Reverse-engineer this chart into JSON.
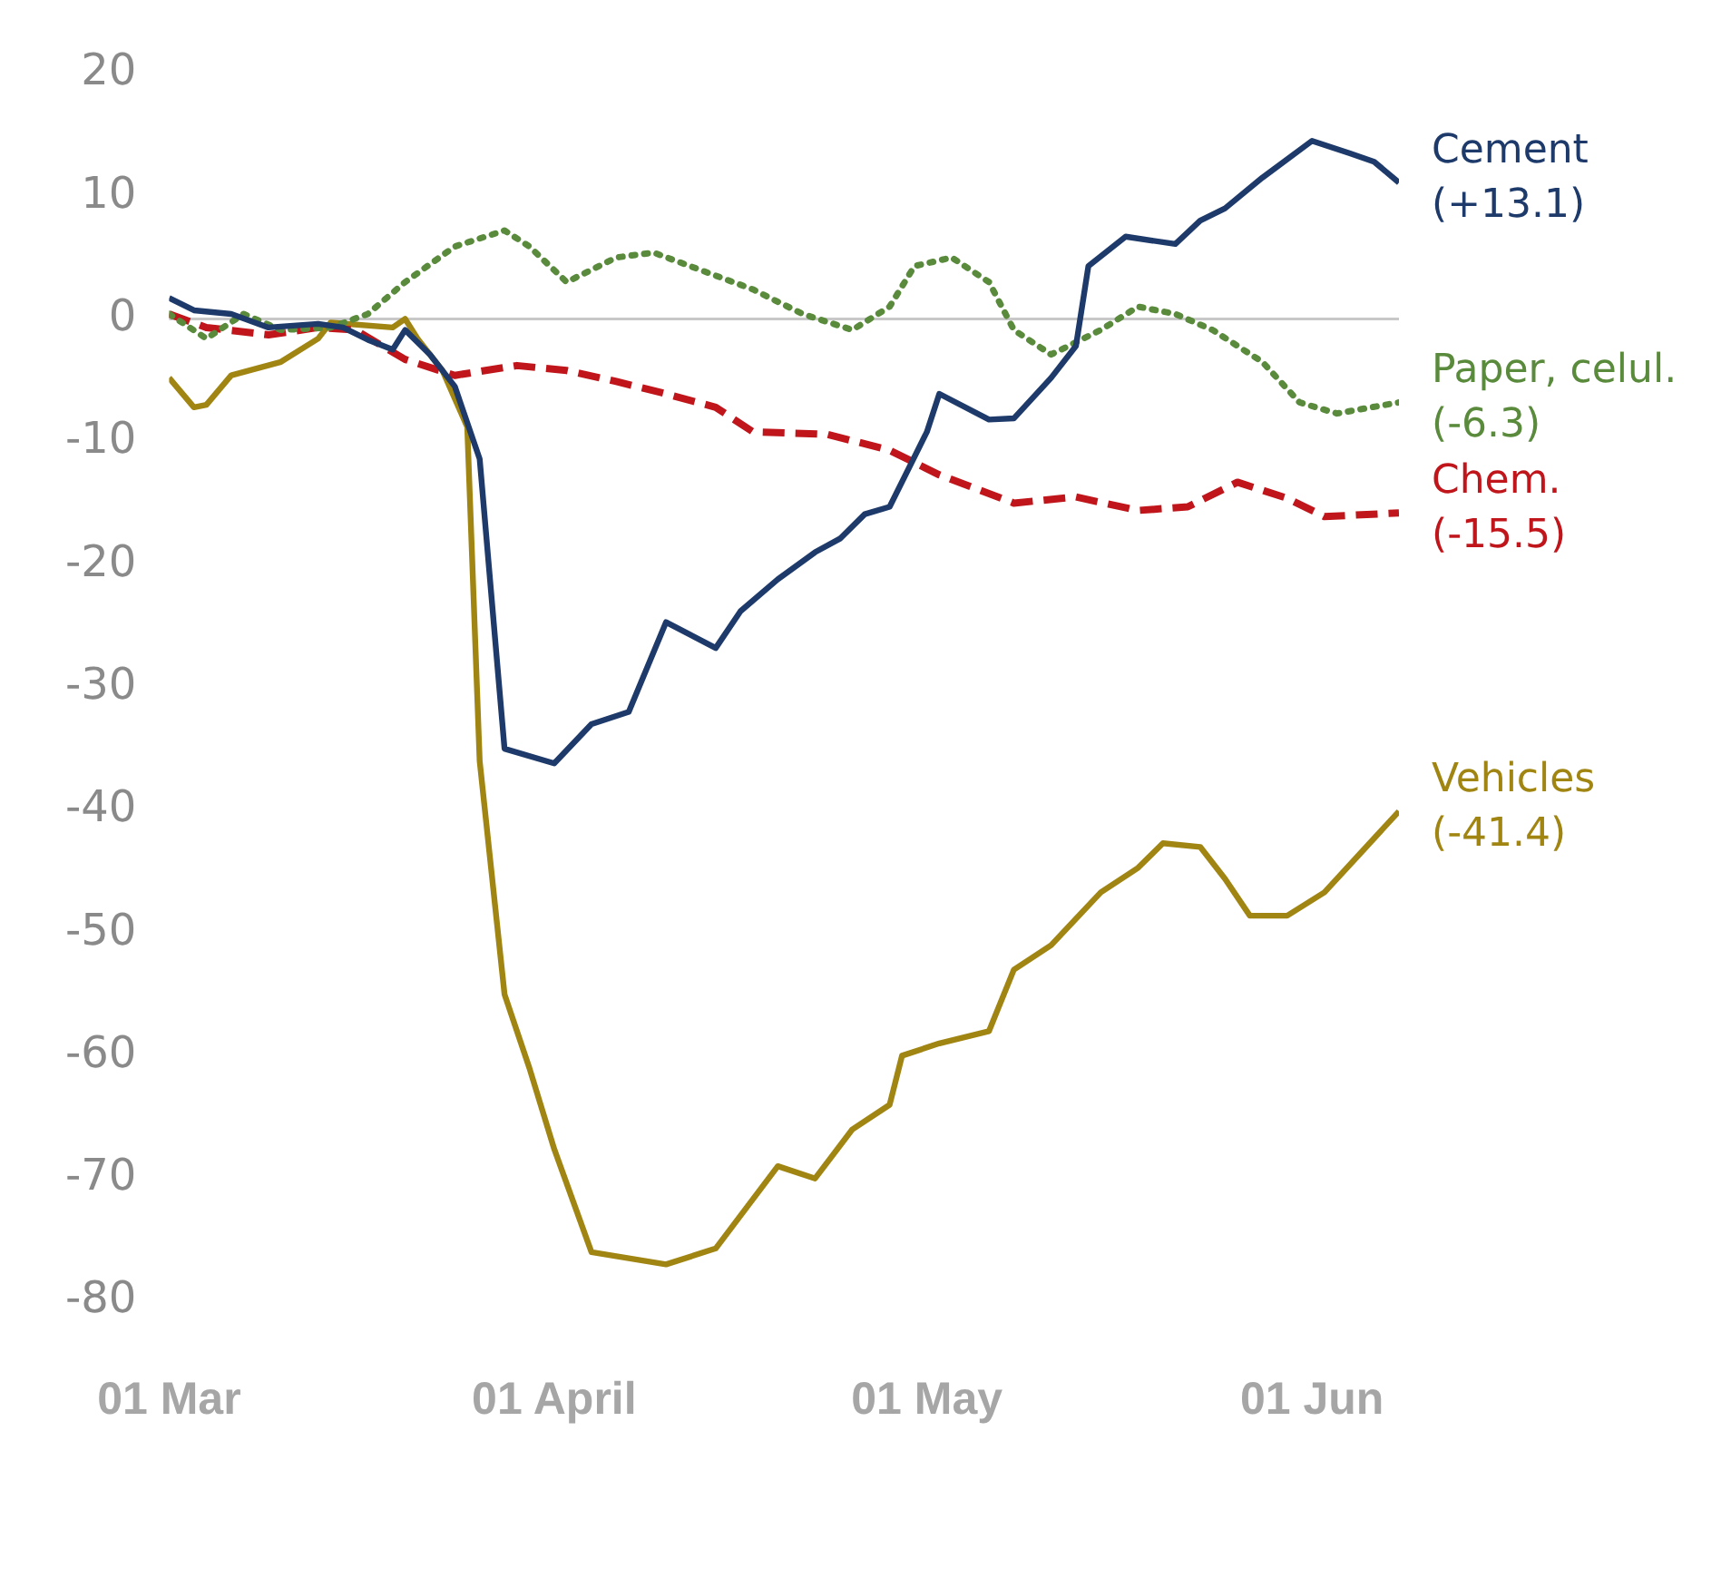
{
  "chart_data": {
    "type": "line",
    "marker": "none",
    "legend": false,
    "grid": false,
    "xlim": [
      "--03-01",
      "--06-08"
    ],
    "xticks": [
      {
        "value": "--03-01",
        "label": "01 Mar"
      },
      {
        "value": "--04-01",
        "label": "01 April"
      },
      {
        "value": "--05-01",
        "label": "01 May"
      },
      {
        "value": "--06-01",
        "label": "01 Jun"
      }
    ],
    "ylim": [
      -80,
      20
    ],
    "yticks": [
      -80,
      -70,
      -60,
      -50,
      -40,
      -30,
      -20,
      -10,
      0,
      10,
      20
    ],
    "ref_lines": [
      {
        "axis": "y",
        "value": 0,
        "color": "#c8c8c8"
      }
    ],
    "series": [
      {
        "name": "Cement",
        "color": "#1d3a6b",
        "line_style": "solid",
        "x": [
          "--03-01",
          "--03-03",
          "--03-06",
          "--03-09",
          "--03-13",
          "--03-15",
          "--03-17",
          "--03-19",
          "--03-20",
          "--03-22",
          "--03-24",
          "--03-26",
          "--03-28",
          "--04-01",
          "--04-04",
          "--04-07",
          "--04-10",
          "--04-14",
          "--04-16",
          "--04-19",
          "--04-22",
          "--04-24",
          "--04-26",
          "--04-28",
          "--05-01",
          "--05-02",
          "--05-06",
          "--05-08",
          "--05-11",
          "--05-13",
          "--05-14",
          "--05-17",
          "--05-21",
          "--05-23",
          "--05-25",
          "--05-28",
          "--06-01",
          "--06-04",
          "--06-06",
          "--06-08"
        ],
        "values": [
          1.7,
          0.7,
          0.4,
          -0.7,
          -0.4,
          -0.7,
          -1.7,
          -2.5,
          -0.9,
          -2.9,
          -5.5,
          -11.4,
          -35,
          -36.2,
          -33,
          -32,
          -24.7,
          -26.8,
          -23.8,
          -21.2,
          -19,
          -17.9,
          -15.9,
          -15.3,
          -9.2,
          -6.1,
          -8.2,
          -8.1,
          -4.8,
          -2.2,
          4.3,
          6.7,
          6.1,
          8,
          9,
          11.5,
          14.5,
          13.5,
          12.8,
          11.1
        ]
      },
      {
        "name": "Paper, celul.",
        "color": "#5a8a3c",
        "line_style": "dotted",
        "x": [
          "--03-01",
          "--03-04",
          "--03-07",
          "--03-10",
          "--03-14",
          "--03-17",
          "--03-20",
          "--03-24",
          "--03-28",
          "--03-30",
          "--04-02",
          "--04-06",
          "--04-09",
          "--04-13",
          "--04-17",
          "--04-21",
          "--04-25",
          "--04-28",
          "--04-30",
          "--05-03",
          "--05-06",
          "--05-08",
          "--05-11",
          "--05-15",
          "--05-18",
          "--05-21",
          "--05-24",
          "--05-28",
          "--05-31",
          "--06-03",
          "--06-08"
        ],
        "values": [
          0.4,
          -1.6,
          0.4,
          -0.9,
          -0.7,
          0.4,
          3,
          5.9,
          7.2,
          5.9,
          3,
          5,
          5.4,
          3.9,
          2.4,
          0.4,
          -0.9,
          1,
          4.3,
          5,
          3,
          -0.9,
          -2.9,
          -0.9,
          1,
          0.4,
          -0.9,
          -3.5,
          -6.8,
          -7.7,
          -6.8
        ]
      },
      {
        "name": "Chem.",
        "color": "#c0161b",
        "line_style": "dashed",
        "x": [
          "--03-01",
          "--03-04",
          "--03-09",
          "--03-13",
          "--03-16",
          "--03-20",
          "--03-24",
          "--03-29",
          "--04-02",
          "--04-06",
          "--04-10",
          "--04-14",
          "--04-17",
          "--04-23",
          "--04-28",
          "--05-02",
          "--05-08",
          "--05-13",
          "--05-18",
          "--05-22",
          "--05-26",
          "--05-30",
          "--06-02",
          "--06-08"
        ],
        "values": [
          0.4,
          -0.7,
          -1.3,
          -0.7,
          -0.9,
          -3.3,
          -4.6,
          -3.8,
          -4.2,
          -5.1,
          -6.1,
          -7.2,
          -9.2,
          -9.4,
          -10.7,
          -12.7,
          -15,
          -14.5,
          -15.6,
          -15.3,
          -13.3,
          -14.6,
          -16.1,
          -15.8
        ]
      },
      {
        "name": "Vehicles",
        "color": "#a08512",
        "line_style": "solid",
        "x": [
          "--03-01",
          "--03-03",
          "--03-04",
          "--03-06",
          "--03-10",
          "--03-13",
          "--03-14",
          "--03-19",
          "--03-20",
          "--03-21",
          "--03-23",
          "--03-25",
          "--03-26",
          "--03-28",
          "--03-30",
          "--04-01",
          "--04-04",
          "--04-10",
          "--04-14",
          "--04-19",
          "--04-22",
          "--04-25",
          "--04-28",
          "--04-29",
          "--05-02",
          "--05-06",
          "--05-08",
          "--05-11",
          "--05-15",
          "--05-18",
          "--05-20",
          "--05-23",
          "--05-25",
          "--05-27",
          "--05-30",
          "--06-02",
          "--06-05",
          "--06-08"
        ],
        "values": [
          -4.8,
          -7.2,
          -7,
          -4.6,
          -3.5,
          -1.6,
          -0.3,
          -0.7,
          0,
          -1.6,
          -4.2,
          -8.8,
          -36,
          -55,
          -61,
          -67.6,
          -76,
          -77,
          -75.7,
          -69,
          -70,
          -66,
          -64,
          -60,
          -59,
          -58,
          -53,
          -51,
          -46.7,
          -44.7,
          -42.7,
          -43,
          -45.6,
          -48.6,
          -48.6,
          -46.7,
          -43.4,
          -40.1
        ]
      }
    ],
    "annotations": [
      {
        "text": "(+13.1)",
        "x": "--06-08",
        "y": 11.1
      },
      {
        "text": "(-6.3)",
        "x": "--06-08",
        "y": -6.8
      },
      {
        "text": "(-15.5)",
        "x": "--06-08",
        "y": -15.8
      },
      {
        "text": "(-41.4)",
        "x": "--06-08",
        "y": -40.1
      }
    ]
  }
}
